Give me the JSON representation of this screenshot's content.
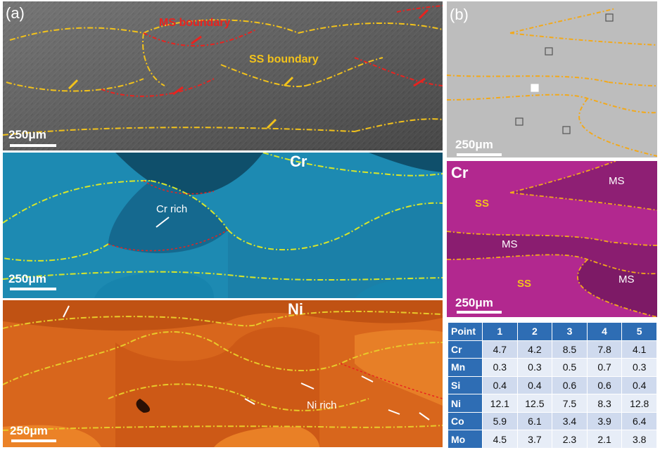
{
  "panel_a": {
    "letter": "(a)",
    "sem": {
      "ms_label": "MS boundary",
      "ss_label": "SS boundary",
      "scale": "250μm"
    },
    "cr_map": {
      "element": "Cr",
      "rich_label": "Cr rich",
      "scale": "250μm"
    },
    "ni_map": {
      "element": "Ni",
      "rich_label": "Ni rich",
      "scale": "250μm"
    }
  },
  "panel_b": {
    "letter": "(b)",
    "sem": {
      "scale": "250μm"
    },
    "cr_map": {
      "element": "Cr",
      "scale": "250μm",
      "labels": {
        "ms1": "MS",
        "ms2": "MS",
        "ms3": "MS",
        "ss1": "SS",
        "ss2": "SS"
      }
    }
  },
  "colors": {
    "ms_boundary": "#e8231f",
    "ss_boundary": "#f2c21b",
    "table_head": "#2e6db4",
    "cr_cyan": "#1d8ab2",
    "ni_orange": "#d8661c",
    "cr_magenta": "#b0278f"
  },
  "table": {
    "header": [
      "Point",
      "1",
      "2",
      "3",
      "4",
      "5"
    ],
    "rows": [
      {
        "element": "Cr",
        "values": [
          "4.7",
          "4.2",
          "8.5",
          "7.8",
          "4.1"
        ]
      },
      {
        "element": "Mn",
        "values": [
          "0.3",
          "0.3",
          "0.5",
          "0.7",
          "0.3"
        ]
      },
      {
        "element": "Si",
        "values": [
          "0.4",
          "0.4",
          "0.6",
          "0.6",
          "0.4"
        ]
      },
      {
        "element": "Ni",
        "values": [
          "12.1",
          "12.5",
          "7.5",
          "8.3",
          "12.8"
        ]
      },
      {
        "element": "Co",
        "values": [
          "5.9",
          "6.1",
          "3.4",
          "3.9",
          "6.4"
        ]
      },
      {
        "element": "Mo",
        "values": [
          "4.5",
          "3.7",
          "2.3",
          "2.1",
          "3.8"
        ]
      }
    ]
  }
}
